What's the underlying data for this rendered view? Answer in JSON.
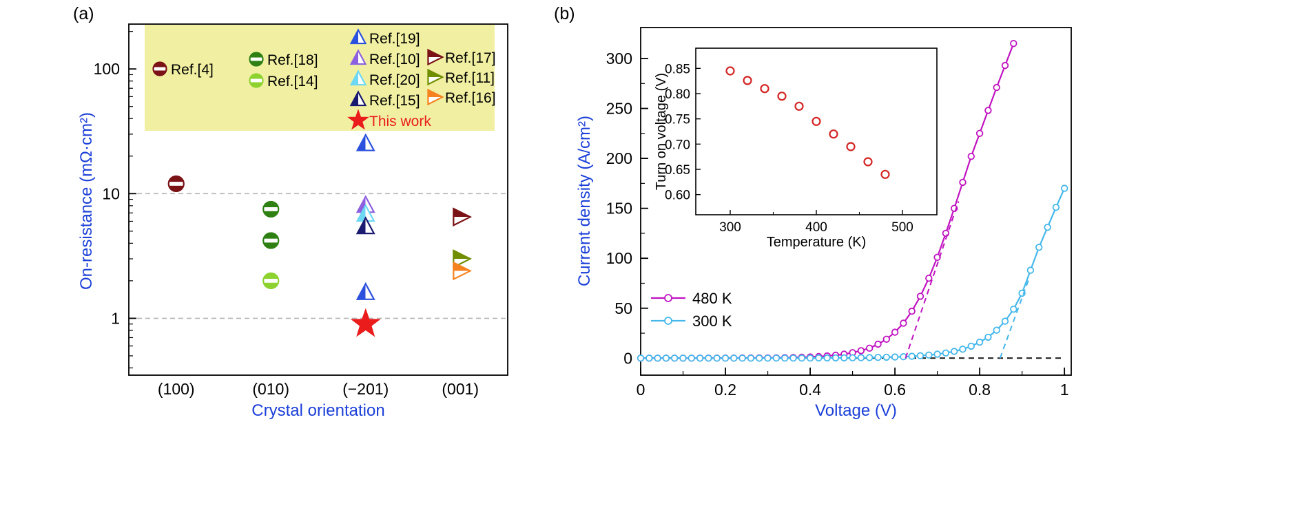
{
  "figure": {
    "panel_a": "(a)",
    "panel_b": "(b)",
    "accent_blue": "#1b3fd8",
    "legend_bg": "#f1f0a2",
    "background": "#ffffff"
  },
  "chart_data": [
    {
      "type": "scatter",
      "panel": "a",
      "xlabel": "Crystal orientation",
      "ylabel": "On-resistance (mΩ·cm²)",
      "y_scale": "log",
      "ylim": [
        0.35,
        229
      ],
      "y_ticks": [
        1,
        10,
        100
      ],
      "dashed_gridlines_y": [
        1,
        10
      ],
      "categories": [
        "(100)",
        "(010)",
        "(−201)",
        "(001)"
      ],
      "legend": [
        {
          "label": "Ref.[4]",
          "marker": "half-circle",
          "color": "#7a1216"
        },
        {
          "label": "Ref.[18]",
          "marker": "half-circle",
          "color": "#2e8013"
        },
        {
          "label": "Ref.[14]",
          "marker": "half-circle",
          "color": "#8dd22f"
        },
        {
          "label": "Ref.[19]",
          "marker": "tri-up",
          "color": "#2b50dd"
        },
        {
          "label": "Ref.[10]",
          "marker": "tri-up",
          "color": "#8d60e0"
        },
        {
          "label": "Ref.[20]",
          "marker": "tri-up",
          "color": "#6cd8f4"
        },
        {
          "label": "Ref.[15]",
          "marker": "tri-up",
          "color": "#191a70"
        },
        {
          "label": "Ref.[17]",
          "marker": "tri-right",
          "color": "#7a1216"
        },
        {
          "label": "Ref.[11]",
          "marker": "tri-right",
          "color": "#6f8e00"
        },
        {
          "label": "Ref.[16]",
          "marker": "tri-right",
          "color": "#f5821f"
        },
        {
          "label": "This work",
          "marker": "star",
          "color": "#ea1c1c",
          "text_color": "#ea1c1c"
        }
      ],
      "points": [
        {
          "category": 0,
          "value": 12,
          "marker": "half-circle",
          "color": "#7a1216",
          "ref": "Ref.[4]"
        },
        {
          "category": 1,
          "value": 7.5,
          "marker": "half-circle",
          "color": "#2e8013",
          "ref": "Ref.[18]"
        },
        {
          "category": 1,
          "value": 4.2,
          "marker": "half-circle",
          "color": "#2e8013",
          "ref": "Ref.[18]"
        },
        {
          "category": 1,
          "value": 2.0,
          "marker": "half-circle",
          "color": "#8dd22f",
          "ref": "Ref.[14]"
        },
        {
          "category": 2,
          "value": 25,
          "marker": "tri-up",
          "color": "#2b50dd",
          "ref": "Ref.[19]"
        },
        {
          "category": 2,
          "value": 8.0,
          "marker": "tri-up",
          "color": "#8d60e0",
          "ref": "Ref.[10]"
        },
        {
          "category": 2,
          "value": 6.8,
          "marker": "tri-up",
          "color": "#6cd8f4",
          "ref": "Ref.[20]"
        },
        {
          "category": 2,
          "value": 5.4,
          "marker": "tri-up",
          "color": "#191a70",
          "ref": "Ref.[15]"
        },
        {
          "category": 2,
          "value": 1.6,
          "marker": "tri-up",
          "color": "#2b50dd",
          "ref": "Ref.[19]"
        },
        {
          "category": 2,
          "value": 0.9,
          "marker": "star",
          "color": "#ea1c1c",
          "ref": "This work"
        },
        {
          "category": 3,
          "value": 6.5,
          "marker": "tri-right",
          "color": "#7a1216",
          "ref": "Ref.[17]"
        },
        {
          "category": 3,
          "value": 3.0,
          "marker": "tri-right",
          "color": "#6f8e00",
          "ref": "Ref.[11]"
        },
        {
          "category": 3,
          "value": 2.4,
          "marker": "tri-right",
          "color": "#f5821f",
          "ref": "Ref.[16]"
        }
      ]
    },
    {
      "type": "line",
      "panel": "b",
      "xlabel": "Voltage (V)",
      "ylabel": "Current density (A/cm²)",
      "xlim": [
        0,
        1.0
      ],
      "ylim": [
        0,
        300
      ],
      "x_ticks": [
        0,
        0.2,
        0.4,
        0.6,
        0.8,
        1.0
      ],
      "y_ticks": [
        0,
        50,
        100,
        150,
        200,
        250,
        300
      ],
      "series": [
        {
          "name": "480 K",
          "color": "#c013c0",
          "points": [
            [
              0,
              0
            ],
            [
              0.02,
              0
            ],
            [
              0.04,
              0
            ],
            [
              0.06,
              0
            ],
            [
              0.08,
              0
            ],
            [
              0.1,
              0
            ],
            [
              0.12,
              0
            ],
            [
              0.14,
              0.1
            ],
            [
              0.16,
              0.1
            ],
            [
              0.18,
              0.1
            ],
            [
              0.2,
              0.1
            ],
            [
              0.22,
              0.1
            ],
            [
              0.24,
              0.2
            ],
            [
              0.26,
              0.2
            ],
            [
              0.28,
              0.3
            ],
            [
              0.3,
              0.3
            ],
            [
              0.32,
              0.4
            ],
            [
              0.34,
              0.5
            ],
            [
              0.36,
              0.7
            ],
            [
              0.38,
              0.9
            ],
            [
              0.4,
              1.2
            ],
            [
              0.42,
              1.6
            ],
            [
              0.44,
              2.2
            ],
            [
              0.46,
              3
            ],
            [
              0.48,
              4
            ],
            [
              0.5,
              5.5
            ],
            [
              0.52,
              7.5
            ],
            [
              0.54,
              10
            ],
            [
              0.56,
              14
            ],
            [
              0.58,
              19
            ],
            [
              0.6,
              26
            ],
            [
              0.62,
              35
            ],
            [
              0.64,
              47
            ],
            [
              0.66,
              62
            ],
            [
              0.68,
              80
            ],
            [
              0.7,
              101
            ],
            [
              0.72,
              125
            ],
            [
              0.74,
              150
            ],
            [
              0.76,
              176
            ],
            [
              0.78,
              202
            ],
            [
              0.8,
              225
            ],
            [
              0.82,
              248
            ],
            [
              0.84,
              271
            ],
            [
              0.86,
              293
            ],
            [
              0.88,
              315
            ]
          ]
        },
        {
          "name": "300 K",
          "color": "#45b7ea",
          "points": [
            [
              0,
              0
            ],
            [
              0.02,
              0
            ],
            [
              0.04,
              0
            ],
            [
              0.06,
              0
            ],
            [
              0.08,
              0
            ],
            [
              0.1,
              0
            ],
            [
              0.12,
              0
            ],
            [
              0.14,
              0
            ],
            [
              0.16,
              0
            ],
            [
              0.18,
              0
            ],
            [
              0.2,
              0
            ],
            [
              0.22,
              0
            ],
            [
              0.24,
              0
            ],
            [
              0.26,
              0
            ],
            [
              0.28,
              0
            ],
            [
              0.3,
              0
            ],
            [
              0.32,
              0.1
            ],
            [
              0.34,
              0.1
            ],
            [
              0.36,
              0.1
            ],
            [
              0.38,
              0.1
            ],
            [
              0.4,
              0.1
            ],
            [
              0.42,
              0.2
            ],
            [
              0.44,
              0.2
            ],
            [
              0.46,
              0.3
            ],
            [
              0.48,
              0.3
            ],
            [
              0.5,
              0.4
            ],
            [
              0.52,
              0.5
            ],
            [
              0.54,
              0.6
            ],
            [
              0.56,
              0.8
            ],
            [
              0.58,
              1
            ],
            [
              0.6,
              1.2
            ],
            [
              0.62,
              1.5
            ],
            [
              0.64,
              1.9
            ],
            [
              0.66,
              2.4
            ],
            [
              0.68,
              3.1
            ],
            [
              0.7,
              4
            ],
            [
              0.72,
              5.2
            ],
            [
              0.74,
              6.8
            ],
            [
              0.76,
              9
            ],
            [
              0.78,
              12
            ],
            [
              0.8,
              16
            ],
            [
              0.82,
              21
            ],
            [
              0.84,
              28
            ],
            [
              0.86,
              37
            ],
            [
              0.88,
              49
            ],
            [
              0.9,
              65
            ],
            [
              0.92,
              88
            ],
            [
              0.94,
              111
            ],
            [
              0.96,
              131
            ],
            [
              0.98,
              151
            ],
            [
              1,
              170
            ]
          ]
        }
      ],
      "guide_lines": [
        {
          "name": "zero-line",
          "color": "#111111",
          "points": [
            [
              0,
              0
            ],
            [
              1.0,
              0
            ]
          ]
        },
        {
          "name": "turn-on-extrapolation-480K",
          "color": "#c013c0",
          "points": [
            [
              0.625,
              0
            ],
            [
              0.75,
              157
            ]
          ]
        },
        {
          "name": "turn-on-extrapolation-300K",
          "color": "#45b7ea",
          "points": [
            [
              0.848,
              0
            ],
            [
              0.915,
              78
            ]
          ]
        }
      ],
      "inset": {
        "type": "scatter",
        "xlabel": "Temperature (K)",
        "ylabel": "Turn on voltage (V)",
        "xlim": [
          260,
          540
        ],
        "ylim": [
          0.56,
          0.89
        ],
        "x_ticks": [
          300,
          400,
          500
        ],
        "y_ticks": [
          0.6,
          0.65,
          0.7,
          0.75,
          0.8,
          0.85
        ],
        "color": "#d42525",
        "points": [
          [
            300,
            0.845
          ],
          [
            320,
            0.826
          ],
          [
            340,
            0.81
          ],
          [
            360,
            0.795
          ],
          [
            380,
            0.775
          ],
          [
            400,
            0.745
          ],
          [
            420,
            0.72
          ],
          [
            440,
            0.695
          ],
          [
            460,
            0.665
          ],
          [
            480,
            0.64
          ]
        ]
      }
    }
  ]
}
